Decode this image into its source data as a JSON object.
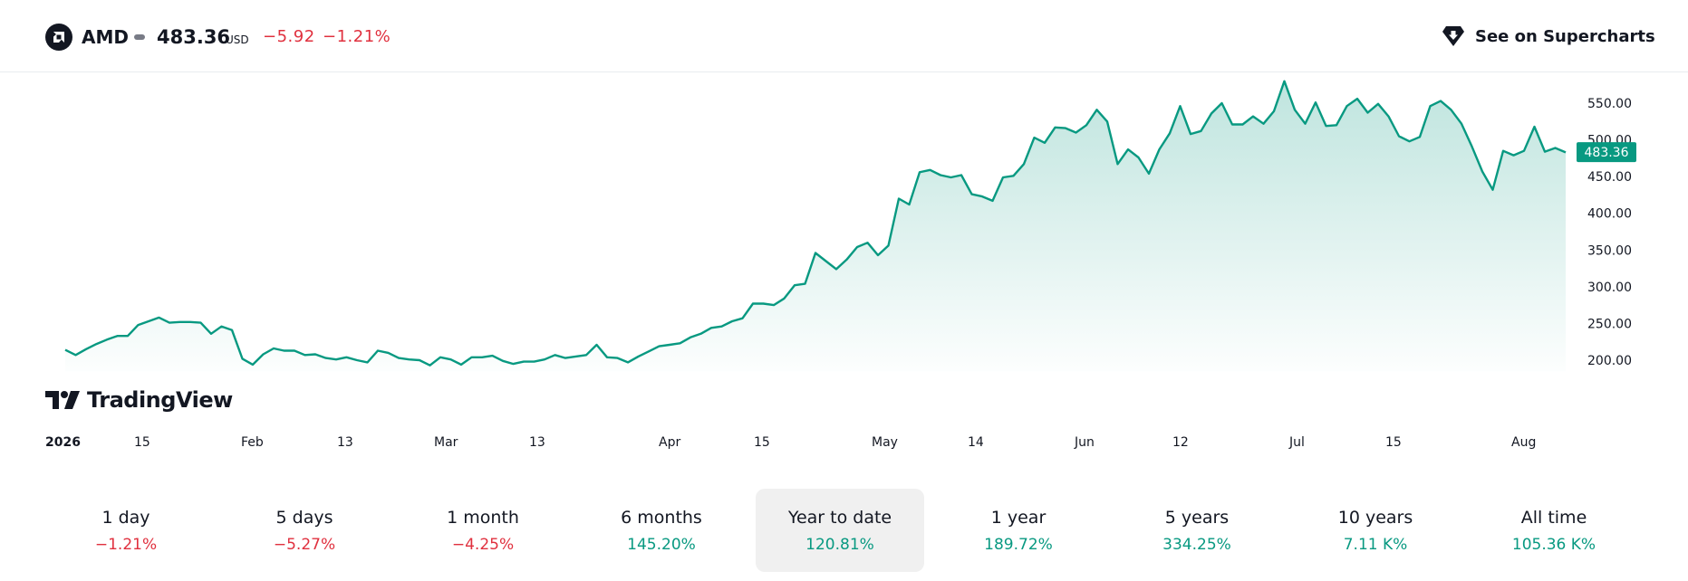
{
  "header": {
    "symbol": "AMD",
    "price": "483.36",
    "currency": "USD",
    "change": "−5.92",
    "change_pct": "−1.21%",
    "supercharts_label": "See on Supercharts"
  },
  "watermark": "TradingView",
  "colors": {
    "line": "#089981",
    "negative": "#e0303e",
    "positive": "#089981"
  },
  "chart_data": {
    "type": "area",
    "title": "",
    "xlabel": "",
    "ylabel": "",
    "ylim": [
      185,
      590
    ],
    "y_ticks": [
      "550.00",
      "500.00",
      "450.00",
      "400.00",
      "350.00",
      "300.00",
      "250.00",
      "200.00"
    ],
    "x_ticks": [
      "2026",
      "15",
      "Feb",
      "13",
      "Mar",
      "13",
      "Apr",
      "15",
      "May",
      "14",
      "Jun",
      "12",
      "Jul",
      "15",
      "Aug"
    ],
    "last_price_label": "483.36",
    "grid": false,
    "series": [
      {
        "values": [
          214,
          207,
          215,
          222,
          228,
          233,
          233,
          248,
          253,
          258,
          251,
          252,
          252,
          251,
          236,
          246,
          241,
          202,
          194,
          208,
          216,
          213,
          213,
          207,
          208,
          203,
          201,
          204,
          200,
          197,
          213,
          210,
          203,
          201,
          200,
          193,
          204,
          201,
          194,
          204,
          204,
          206,
          199,
          195,
          198,
          198,
          201,
          207,
          203,
          205,
          207,
          221,
          204,
          203,
          197,
          205,
          212,
          219,
          221,
          223,
          231,
          236,
          244,
          246,
          253,
          257,
          277,
          277,
          275,
          284,
          302,
          304,
          346,
          335,
          324,
          337,
          354,
          360,
          343,
          356,
          420,
          412,
          456,
          459,
          452,
          449,
          452,
          426,
          423,
          417,
          449,
          451,
          467,
          503,
          496,
          517,
          516,
          510,
          520,
          541,
          525,
          467,
          487,
          476,
          454,
          487,
          509,
          546,
          508,
          512,
          536,
          550,
          521,
          521,
          532,
          522,
          539,
          580,
          541,
          522,
          551,
          519,
          520,
          546,
          556,
          537,
          549,
          532,
          505,
          498,
          504,
          546,
          553,
          541,
          522,
          491,
          457,
          432,
          485,
          479,
          485,
          518,
          484,
          489,
          483
        ]
      }
    ]
  },
  "periods": [
    {
      "label": "1 day",
      "value": "−1.21%",
      "trend": "neg"
    },
    {
      "label": "5 days",
      "value": "−5.27%",
      "trend": "neg"
    },
    {
      "label": "1 month",
      "value": "−4.25%",
      "trend": "neg"
    },
    {
      "label": "6 months",
      "value": "145.20%",
      "trend": "pos"
    },
    {
      "label": "Year to date",
      "value": "120.81%",
      "trend": "pos",
      "active": true
    },
    {
      "label": "1 year",
      "value": "189.72%",
      "trend": "pos"
    },
    {
      "label": "5 years",
      "value": "334.25%",
      "trend": "pos"
    },
    {
      "label": "10 years",
      "value": "7.11 K%",
      "trend": "pos"
    },
    {
      "label": "All time",
      "value": "105.36 K%",
      "trend": "pos"
    }
  ]
}
